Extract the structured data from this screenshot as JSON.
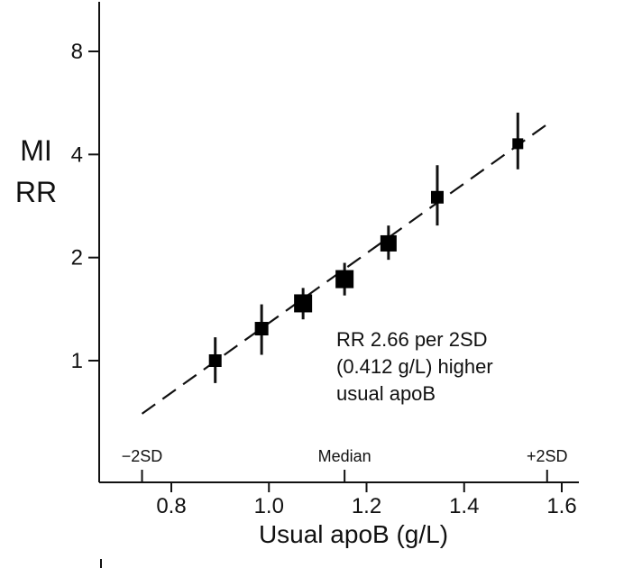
{
  "chart_data": {
    "type": "scatter",
    "ylabel_lines": [
      "MI",
      "RR"
    ],
    "xlabel": "Usual apoB (g/L)",
    "xlim": [
      0.68,
      1.64
    ],
    "ylim": [
      0.6,
      10
    ],
    "yscale": "log",
    "xticks": [
      0.8,
      1.0,
      1.2,
      1.4,
      1.6
    ],
    "xtick_labels": [
      "0.8",
      "1.0",
      "1.2",
      "1.4",
      "1.6"
    ],
    "yticks": [
      1,
      2,
      4,
      8
    ],
    "ytick_labels": [
      "1",
      "2",
      "4",
      "8"
    ],
    "sd_markers": [
      {
        "x": 0.74,
        "label": "−2SD"
      },
      {
        "x": 1.155,
        "label": "Median"
      },
      {
        "x": 1.57,
        "label": "+2SD"
      }
    ],
    "points": [
      {
        "x": 0.89,
        "y": 1.0,
        "lo": 0.86,
        "hi": 1.17,
        "size": 14
      },
      {
        "x": 0.985,
        "y": 1.24,
        "lo": 1.04,
        "hi": 1.46,
        "size": 15
      },
      {
        "x": 1.07,
        "y": 1.47,
        "lo": 1.32,
        "hi": 1.63,
        "size": 20
      },
      {
        "x": 1.155,
        "y": 1.73,
        "lo": 1.55,
        "hi": 1.93,
        "size": 20
      },
      {
        "x": 1.245,
        "y": 2.2,
        "lo": 1.97,
        "hi": 2.48,
        "size": 18
      },
      {
        "x": 1.345,
        "y": 3.0,
        "lo": 2.48,
        "hi": 3.72,
        "size": 14
      },
      {
        "x": 1.51,
        "y": 4.3,
        "lo": 3.62,
        "hi": 5.3,
        "size": 12
      }
    ],
    "fit_line": {
      "x": [
        0.74,
        1.57
      ],
      "y": [
        0.7,
        4.9
      ],
      "style": "dashed"
    },
    "annotation_lines": [
      "RR 2.66 per 2SD",
      "(0.412 g/L) higher",
      "usual apoB"
    ]
  }
}
